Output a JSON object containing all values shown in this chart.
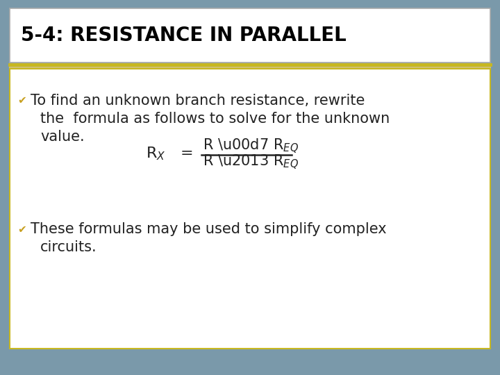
{
  "title": "5-4: RESISTANCE IN PARALLEL",
  "title_fontsize": 20,
  "title_fontweight": "bold",
  "title_color": "#000000",
  "title_bg_color": "#ffffff",
  "title_border_color": "#aaaaaa",
  "content_bg_color": "#ffffff",
  "content_border_color": "#c8b820",
  "outer_bg_color": "#7a99aa",
  "bullet_color": "#c8a020",
  "bullet1_line1": "To find an unknown branch resistance, rewrite",
  "bullet1_line2": "the  formula as follows to solve for the unknown",
  "bullet1_line3": "value.",
  "bullet2_line1": "These formulas may be used to simplify complex",
  "bullet2_line2": "circuits.",
  "text_fontsize": 15,
  "text_color": "#222222",
  "formula_color": "#222222",
  "formula_fontsize": 15,
  "sep_color1": "#c8b820",
  "sep_color2": "#d0c070"
}
